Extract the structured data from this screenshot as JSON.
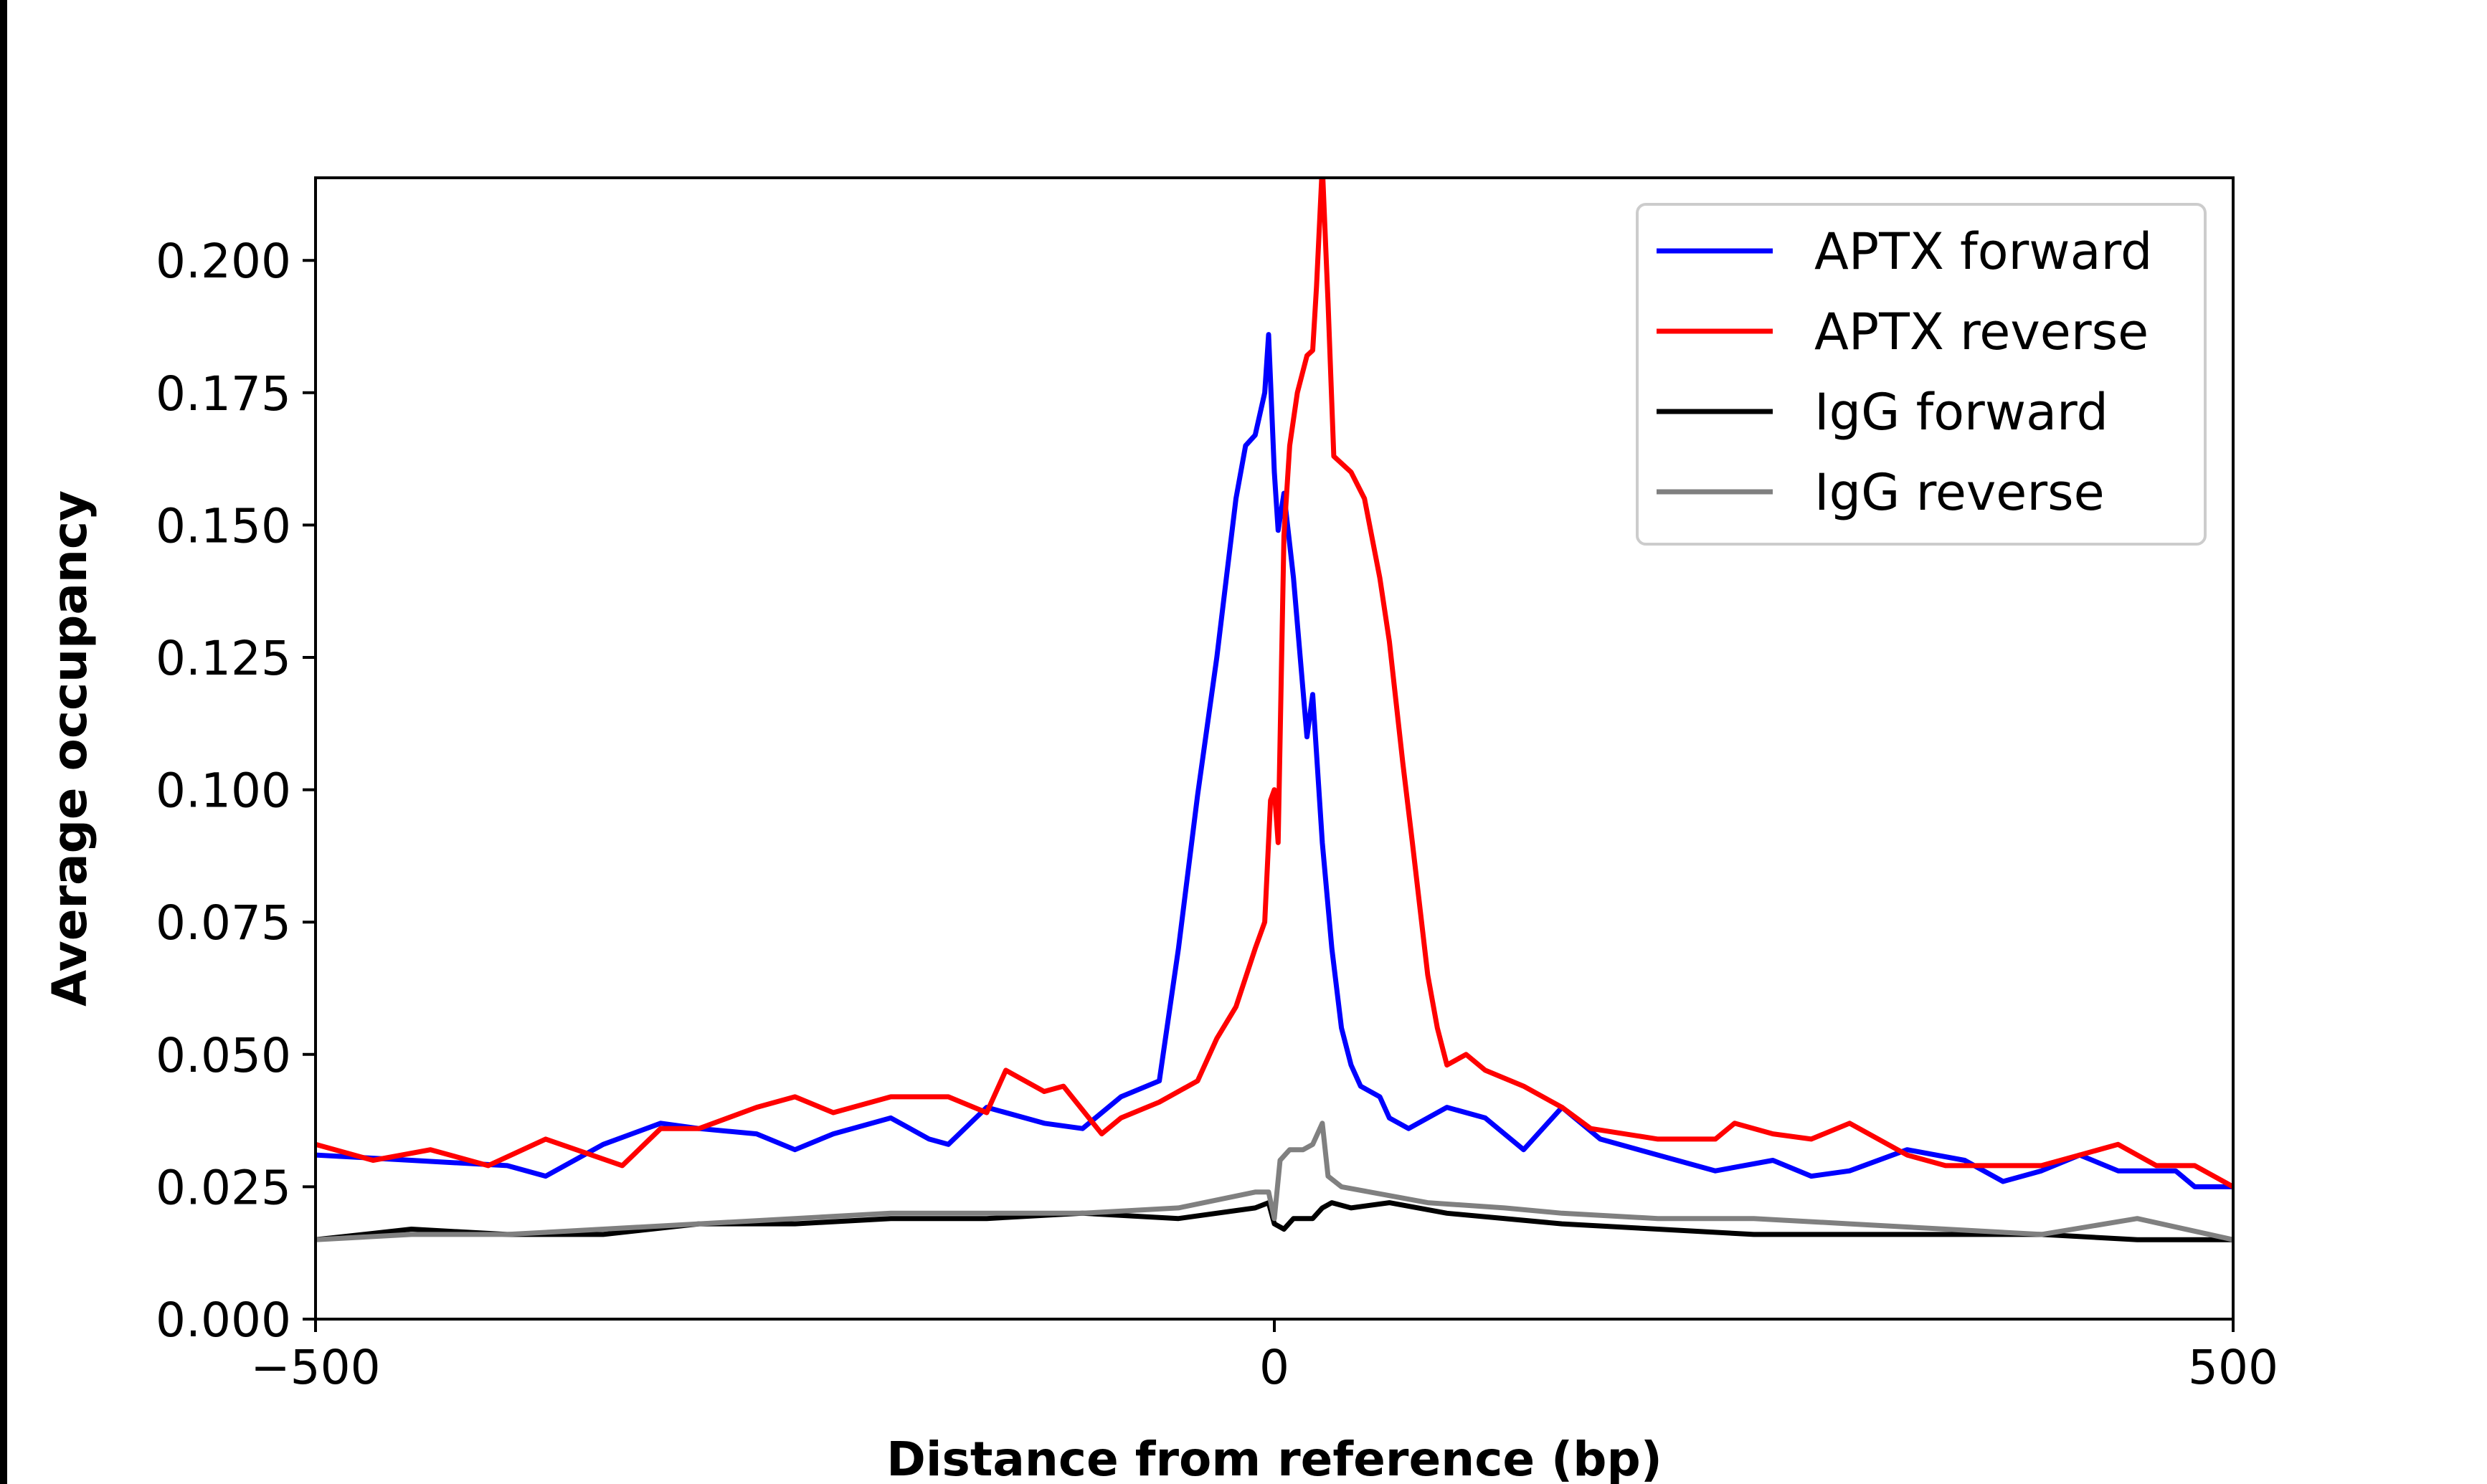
{
  "chart_data": {
    "type": "line",
    "title": "",
    "xlabel": "Distance from reference (bp)",
    "ylabel": "Average occupancy",
    "xlim": [
      -500,
      500
    ],
    "ylim": [
      0,
      0.2156
    ],
    "xticks": [
      -500,
      0,
      500
    ],
    "xtick_labels": [
      "−500",
      "0",
      "500"
    ],
    "yticks": [
      0,
      0.025,
      0.05,
      0.075,
      0.1,
      0.125,
      0.15,
      0.175,
      0.2
    ],
    "ytick_labels": [
      "0.000",
      "0.025",
      "0.050",
      "0.075",
      "0.100",
      "0.125",
      "0.150",
      "0.175",
      "0.200"
    ],
    "grid": false,
    "legend_placement": "top-right",
    "series": [
      {
        "name": "APTX forward",
        "color": "#0000ff",
        "x": [
          -500,
          -450,
          -400,
          -380,
          -350,
          -320,
          -300,
          -270,
          -250,
          -230,
          -200,
          -180,
          -170,
          -150,
          -120,
          -100,
          -80,
          -60,
          -50,
          -40,
          -30,
          -25,
          -20,
          -15,
          -10,
          -5,
          -3,
          0,
          2,
          5,
          10,
          17,
          20,
          25,
          30,
          35,
          40,
          45,
          55,
          60,
          70,
          90,
          110,
          130,
          150,
          170,
          200,
          230,
          260,
          280,
          300,
          330,
          360,
          380,
          400,
          420,
          440,
          470,
          480,
          500
        ],
        "y": [
          0.031,
          0.03,
          0.029,
          0.027,
          0.033,
          0.037,
          0.036,
          0.035,
          0.032,
          0.035,
          0.038,
          0.034,
          0.033,
          0.04,
          0.037,
          0.036,
          0.042,
          0.045,
          0.07,
          0.099,
          0.125,
          0.14,
          0.155,
          0.165,
          0.167,
          0.175,
          0.186,
          0.16,
          0.149,
          0.156,
          0.14,
          0.11,
          0.118,
          0.09,
          0.07,
          0.055,
          0.048,
          0.044,
          0.042,
          0.038,
          0.036,
          0.04,
          0.038,
          0.032,
          0.04,
          0.034,
          0.031,
          0.028,
          0.03,
          0.027,
          0.028,
          0.032,
          0.03,
          0.026,
          0.028,
          0.031,
          0.028,
          0.028,
          0.025,
          0.025
        ]
      },
      {
        "name": "APTX reverse",
        "color": "#ff0000",
        "x": [
          -500,
          -470,
          -440,
          -410,
          -380,
          -340,
          -320,
          -300,
          -270,
          -250,
          -230,
          -200,
          -170,
          -150,
          -140,
          -120,
          -110,
          -90,
          -80,
          -60,
          -40,
          -30,
          -20,
          -10,
          -5,
          -2,
          0,
          2,
          5,
          8,
          12,
          17,
          20,
          22,
          25,
          28,
          31,
          40,
          47,
          55,
          60,
          67,
          72,
          80,
          85,
          90,
          100,
          110,
          130,
          150,
          165,
          200,
          230,
          240,
          260,
          280,
          300,
          310,
          330,
          350,
          370,
          400,
          420,
          440,
          460,
          480,
          500
        ],
        "y": [
          0.033,
          0.03,
          0.032,
          0.029,
          0.034,
          0.029,
          0.036,
          0.036,
          0.04,
          0.042,
          0.039,
          0.042,
          0.042,
          0.039,
          0.047,
          0.043,
          0.044,
          0.035,
          0.038,
          0.041,
          0.045,
          0.053,
          0.059,
          0.07,
          0.075,
          0.098,
          0.1,
          0.09,
          0.148,
          0.165,
          0.175,
          0.182,
          0.183,
          0.195,
          0.218,
          0.192,
          0.163,
          0.16,
          0.155,
          0.14,
          0.128,
          0.105,
          0.09,
          0.065,
          0.055,
          0.048,
          0.05,
          0.047,
          0.044,
          0.04,
          0.036,
          0.034,
          0.034,
          0.037,
          0.035,
          0.034,
          0.037,
          0.035,
          0.031,
          0.029,
          0.029,
          0.029,
          0.031,
          0.033,
          0.029,
          0.029,
          0.025
        ]
      },
      {
        "name": "IgG forward",
        "color": "#000000",
        "x": [
          -500,
          -450,
          -400,
          -350,
          -300,
          -250,
          -200,
          -150,
          -100,
          -50,
          -10,
          -3,
          0,
          5,
          10,
          20,
          25,
          30,
          40,
          60,
          90,
          150,
          200,
          250,
          300,
          350,
          400,
          450,
          500
        ],
        "y": [
          0.015,
          0.017,
          0.016,
          0.016,
          0.018,
          0.018,
          0.019,
          0.019,
          0.02,
          0.019,
          0.021,
          0.022,
          0.018,
          0.017,
          0.019,
          0.019,
          0.021,
          0.022,
          0.021,
          0.022,
          0.02,
          0.018,
          0.017,
          0.016,
          0.016,
          0.016,
          0.016,
          0.015,
          0.015
        ]
      },
      {
        "name": "IgG reverse",
        "color": "#808080",
        "x": [
          -500,
          -450,
          -400,
          -350,
          -300,
          -250,
          -200,
          -150,
          -100,
          -50,
          -10,
          -3,
          0,
          3,
          8,
          15,
          20,
          25,
          28,
          35,
          50,
          80,
          120,
          150,
          200,
          250,
          300,
          350,
          400,
          450,
          500
        ],
        "y": [
          0.015,
          0.016,
          0.016,
          0.017,
          0.018,
          0.019,
          0.02,
          0.02,
          0.02,
          0.021,
          0.024,
          0.024,
          0.019,
          0.03,
          0.032,
          0.032,
          0.033,
          0.037,
          0.027,
          0.025,
          0.024,
          0.022,
          0.021,
          0.02,
          0.019,
          0.019,
          0.018,
          0.017,
          0.016,
          0.019,
          0.015
        ]
      }
    ]
  }
}
